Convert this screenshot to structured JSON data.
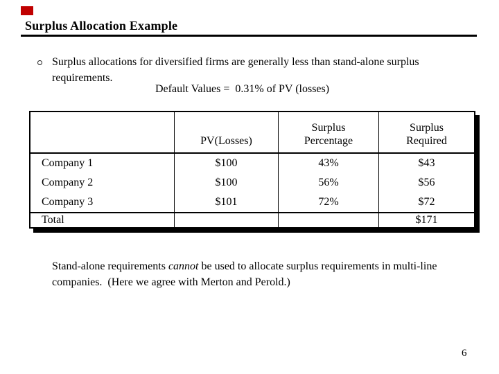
{
  "slide": {
    "title": "Surplus Allocation Example",
    "page_number": "6",
    "accent_color": "#c00000"
  },
  "bullet": {
    "text": "Surplus allocations for diversified firms are generally less than stand-alone surplus requirements.",
    "default_values_line": "Default Values =  0.31% of PV (losses)"
  },
  "table": {
    "columns": [
      "",
      "PV(Losses)",
      "Surplus Percentage",
      "Surplus Required"
    ],
    "header": {
      "pv": "PV(Losses)",
      "pct_line1": "Surplus",
      "pct_line2": "Percentage",
      "req_line1": "Surplus",
      "req_line2": "Required"
    },
    "rows": [
      {
        "label": "Company 1",
        "pv": "$100",
        "pct": "43%",
        "req": "$43"
      },
      {
        "label": "Company 2",
        "pv": "$100",
        "pct": "56%",
        "req": "$56"
      },
      {
        "label": "Company 3",
        "pv": "$101",
        "pct": "72%",
        "req": "$72"
      }
    ],
    "total": {
      "label": "Total",
      "pv": "",
      "pct": "",
      "req": "$171"
    }
  },
  "footer": {
    "pre_italic": "Stand-alone requirements ",
    "italic_word": "cannot",
    "post_italic": " be used to allocate surplus requirements in multi-line companies.  (Here we agree with Merton and Perold.)"
  }
}
